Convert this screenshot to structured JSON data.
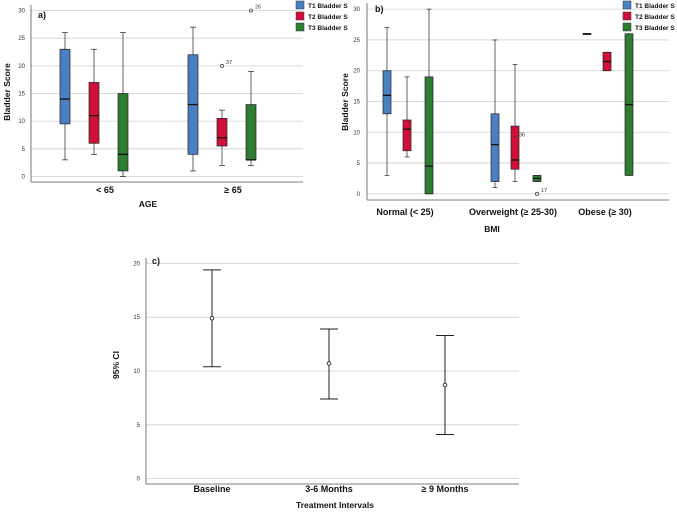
{
  "chart_data": [
    {
      "type": "boxplot",
      "panel_label": "a)",
      "title": "",
      "xlabel": "AGE",
      "ylabel": "Bladder Score",
      "ylim": [
        -1,
        31
      ],
      "yticks": [
        0,
        5,
        10,
        15,
        20,
        25,
        30
      ],
      "categories": [
        "< 65",
        "≥ 65"
      ],
      "series": [
        {
          "name": "T1 Bladder S",
          "color": "#4a7fc1",
          "boxes": [
            {
              "min": 3,
              "q1": 9.5,
              "median": 14,
              "q3": 23,
              "max": 26
            },
            {
              "min": 1,
              "q1": 4,
              "median": 13,
              "q3": 22,
              "max": 27
            }
          ]
        },
        {
          "name": "T2 Bladder S",
          "color": "#d0103a",
          "boxes": [
            {
              "min": 4,
              "q1": 6,
              "median": 11,
              "q3": 17,
              "max": 23
            },
            {
              "min": 2,
              "q1": 5.5,
              "median": 7,
              "q3": 10.5,
              "max": 12
            }
          ]
        },
        {
          "name": "T3 Bladder S",
          "color": "#2e7d32",
          "boxes": [
            {
              "min": 0,
              "q1": 1,
              "median": 4,
              "q3": 15,
              "max": 26
            },
            {
              "min": 2,
              "q1": 3,
              "median": 3,
              "q3": 13,
              "max": 19
            }
          ]
        }
      ],
      "outliers": [
        {
          "category": 1,
          "series": 1,
          "value": 20,
          "label": "37",
          "marker": "o"
        },
        {
          "category": 1,
          "series": 2,
          "value": 30,
          "label": "26",
          "marker": "o"
        }
      ]
    },
    {
      "type": "boxplot",
      "panel_label": "b)",
      "title": "",
      "xlabel": "BMI",
      "ylabel": "Bladder Score",
      "ylim": [
        -1,
        31
      ],
      "yticks": [
        0,
        5,
        10,
        15,
        20,
        25,
        30
      ],
      "categories": [
        "Normal (< 25)",
        "Overweight (≥ 25-30)",
        "Obese (≥ 30)"
      ],
      "series": [
        {
          "name": "T1 Bladder S",
          "color": "#4a7fc1",
          "boxes": [
            {
              "min": 3,
              "q1": 13,
              "median": 16,
              "q3": 20,
              "max": 27
            },
            {
              "min": 1,
              "q1": 2,
              "median": 8,
              "q3": 13,
              "max": 25
            },
            {
              "min": 26,
              "q1": 26,
              "median": 26,
              "q3": 26,
              "max": 26
            }
          ]
        },
        {
          "name": "T2 Bladder S",
          "color": "#d0103a",
          "boxes": [
            {
              "min": 6,
              "q1": 7,
              "median": 10.5,
              "q3": 12,
              "max": 19
            },
            {
              "min": 2,
              "q1": 4,
              "median": 5.5,
              "q3": 11,
              "max": 21
            },
            {
              "min": 20,
              "q1": 20,
              "median": 21.5,
              "q3": 23,
              "max": 23
            }
          ]
        },
        {
          "name": "T3 Bladder S",
          "color": "#2e7d32",
          "boxes": [
            {
              "min": 0,
              "q1": 0,
              "median": 4.5,
              "q3": 19,
              "max": 30
            },
            {
              "min": 2,
              "q1": 2,
              "median": 2.5,
              "q3": 3,
              "max": 3
            },
            {
              "min": 3,
              "q1": 3,
              "median": 14.5,
              "q3": 26,
              "max": 26
            }
          ]
        }
      ],
      "outliers": [
        {
          "category": 1,
          "series": 1,
          "value": 9,
          "label": "36",
          "marker": "*"
        },
        {
          "category": 1,
          "series": 2,
          "value": 0,
          "label": "17",
          "marker": "o"
        }
      ]
    },
    {
      "type": "errorbar",
      "panel_label": "c)",
      "title": "",
      "xlabel": "Treatment Intervals",
      "ylabel": "95% CI",
      "ylim": [
        -0.5,
        20.5
      ],
      "yticks": [
        0,
        5,
        10,
        15,
        20
      ],
      "categories": [
        "Baseline",
        "3-6 Months",
        "≥ 9 Months"
      ],
      "means": [
        14.9,
        10.7,
        8.7
      ],
      "lower": [
        10.4,
        7.4,
        4.1
      ],
      "upper": [
        19.4,
        13.9,
        13.3
      ]
    }
  ]
}
